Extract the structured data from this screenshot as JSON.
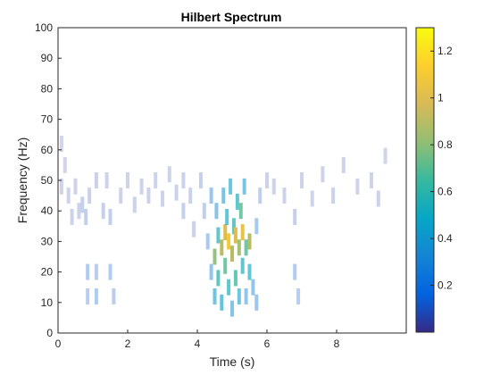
{
  "chart_data": {
    "type": "heatmap",
    "title": "Hilbert Spectrum",
    "xlabel": "Time (s)",
    "ylabel": "Frequency (Hz)",
    "xlim": [
      0,
      10
    ],
    "ylim": [
      0,
      100
    ],
    "xticks": [
      0,
      2,
      4,
      6,
      8
    ],
    "yticks": [
      0,
      10,
      20,
      30,
      40,
      50,
      60,
      70,
      80,
      90,
      100
    ],
    "grid": false,
    "colorbar": {
      "colormap": "parula",
      "range": [
        0,
        1.3
      ],
      "ticks": [
        0.2,
        0.4,
        0.6,
        0.8,
        1,
        1.2
      ],
      "tick_labels": [
        "0.2",
        "0.4",
        "0.6",
        "0.8",
        "1",
        "1.2"
      ]
    },
    "points": [
      [
        0.1,
        62,
        0.04
      ],
      [
        0.1,
        48,
        0.05
      ],
      [
        0.2,
        55,
        0.04
      ],
      [
        0.3,
        45,
        0.05
      ],
      [
        0.4,
        38,
        0.06
      ],
      [
        0.5,
        48,
        0.05
      ],
      [
        0.6,
        40,
        0.06
      ],
      [
        0.7,
        42,
        0.08
      ],
      [
        0.8,
        38,
        0.1
      ],
      [
        0.85,
        20,
        0.15
      ],
      [
        0.85,
        12,
        0.12
      ],
      [
        0.9,
        45,
        0.07
      ],
      [
        1.1,
        12,
        0.16
      ],
      [
        1.1,
        20,
        0.12
      ],
      [
        1.1,
        50,
        0.07
      ],
      [
        1.3,
        40,
        0.08
      ],
      [
        1.4,
        50,
        0.06
      ],
      [
        1.5,
        38,
        0.1
      ],
      [
        1.5,
        20,
        0.15
      ],
      [
        1.6,
        12,
        0.12
      ],
      [
        1.8,
        45,
        0.05
      ],
      [
        2.0,
        50,
        0.05
      ],
      [
        2.2,
        42,
        0.06
      ],
      [
        2.4,
        48,
        0.05
      ],
      [
        2.6,
        45,
        0.06
      ],
      [
        2.8,
        50,
        0.05
      ],
      [
        3.0,
        44,
        0.06
      ],
      [
        3.2,
        52,
        0.05
      ],
      [
        3.4,
        46,
        0.06
      ],
      [
        3.6,
        40,
        0.08
      ],
      [
        3.6,
        50,
        0.06
      ],
      [
        3.8,
        45,
        0.07
      ],
      [
        3.9,
        34,
        0.06
      ],
      [
        4.1,
        50,
        0.08
      ],
      [
        4.2,
        40,
        0.1
      ],
      [
        4.3,
        30,
        0.2
      ],
      [
        4.4,
        20,
        0.3
      ],
      [
        4.4,
        45,
        0.25
      ],
      [
        4.5,
        25,
        0.8
      ],
      [
        4.5,
        12,
        0.45
      ],
      [
        4.55,
        40,
        0.35
      ],
      [
        4.6,
        32,
        0.55
      ],
      [
        4.6,
        18,
        0.6
      ],
      [
        4.7,
        28,
        0.9
      ],
      [
        4.7,
        10,
        0.5
      ],
      [
        4.75,
        45,
        0.4
      ],
      [
        4.8,
        33,
        1.0
      ],
      [
        4.8,
        22,
        0.7
      ],
      [
        4.85,
        38,
        0.5
      ],
      [
        4.9,
        30,
        1.1
      ],
      [
        4.9,
        15,
        0.55
      ],
      [
        4.95,
        48,
        0.45
      ],
      [
        5.0,
        26,
        0.9
      ],
      [
        5.0,
        8,
        0.35
      ],
      [
        5.05,
        35,
        0.6
      ],
      [
        5.1,
        32,
        1.0
      ],
      [
        5.1,
        18,
        0.65
      ],
      [
        5.15,
        43,
        0.55
      ],
      [
        5.2,
        28,
        0.85
      ],
      [
        5.2,
        12,
        0.45
      ],
      [
        5.25,
        40,
        0.7
      ],
      [
        5.3,
        33,
        1.05
      ],
      [
        5.3,
        22,
        0.55
      ],
      [
        5.35,
        48,
        0.4
      ],
      [
        5.4,
        28,
        0.7
      ],
      [
        5.4,
        12,
        0.3
      ],
      [
        5.5,
        30,
        0.9
      ],
      [
        5.5,
        20,
        0.5
      ],
      [
        5.6,
        15,
        0.3
      ],
      [
        5.7,
        35,
        0.2
      ],
      [
        5.7,
        10,
        0.25
      ],
      [
        5.8,
        45,
        0.1
      ],
      [
        6.0,
        50,
        0.06
      ],
      [
        6.2,
        48,
        0.05
      ],
      [
        6.5,
        45,
        0.06
      ],
      [
        6.8,
        38,
        0.08
      ],
      [
        6.8,
        20,
        0.15
      ],
      [
        6.9,
        12,
        0.12
      ],
      [
        7.0,
        50,
        0.05
      ],
      [
        7.3,
        44,
        0.05
      ],
      [
        7.6,
        52,
        0.05
      ],
      [
        7.9,
        45,
        0.06
      ],
      [
        8.2,
        55,
        0.05
      ],
      [
        8.6,
        48,
        0.05
      ],
      [
        9.0,
        50,
        0.05
      ],
      [
        9.2,
        44,
        0.06
      ],
      [
        9.4,
        58,
        0.04
      ]
    ]
  }
}
